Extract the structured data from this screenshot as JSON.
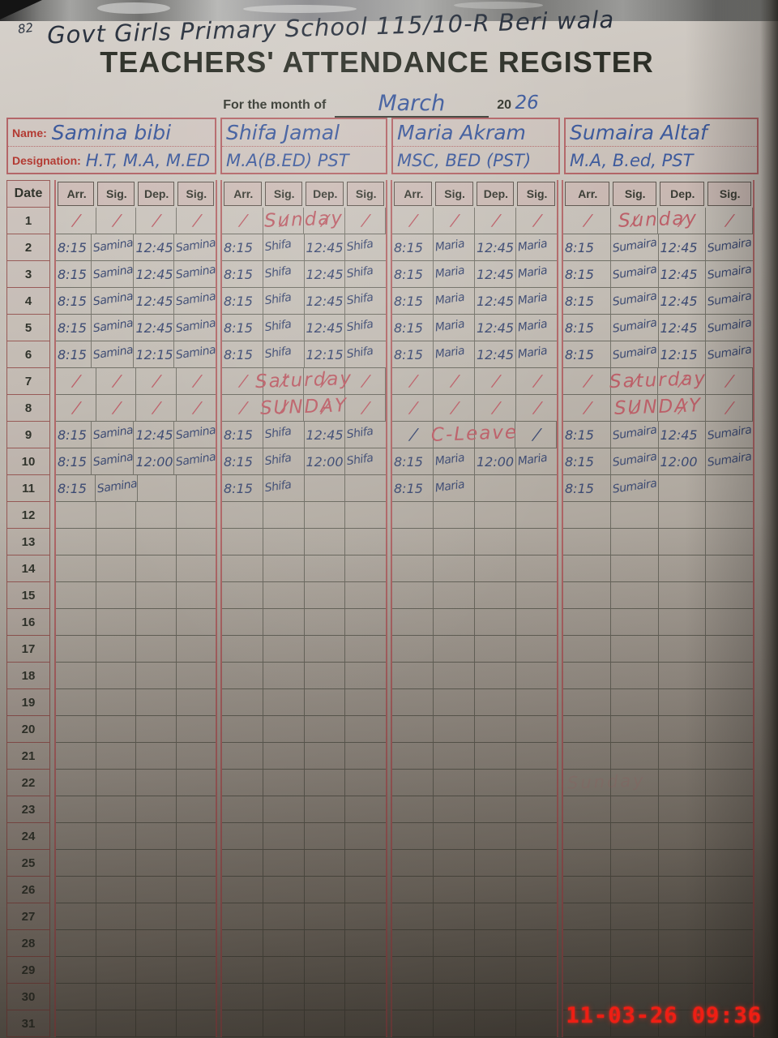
{
  "page_corner_number": "82",
  "school_line": "Govt Girls Primary School 115/10-R Beri wala",
  "title": "TEACHERS' ATTENDANCE REGISTER",
  "month_label": "For the month of",
  "month_value": "March",
  "year_prefix": "20",
  "year_value": "26",
  "name_label": "Name:",
  "designation_label": "Designation:",
  "teachers": [
    {
      "name": "Samina bibi",
      "designation": "H.T, M.A, M.ED"
    },
    {
      "name": "Shifa Jamal",
      "designation": "M.A(B.ED) PST"
    },
    {
      "name": "Maria Akram",
      "designation": "MSC, BED (PST)"
    },
    {
      "name": "Sumaira Altaf",
      "designation": "M.A, B.ed, PST"
    }
  ],
  "columns": {
    "date": "Date",
    "sub": [
      "Arr.",
      "Sig.",
      "Dep.",
      "Sig."
    ]
  },
  "rows": [
    {
      "date": "1",
      "ink": "pink",
      "cells": [
        "/",
        "/",
        "/",
        "/",
        "/",
        "/",
        "/",
        "/",
        "/",
        "/",
        "/",
        "/",
        "/",
        "/",
        "/",
        "/"
      ],
      "overlays": [
        {
          "g": 1,
          "text": "Sunday",
          "ink": "pink"
        },
        {
          "g": 3,
          "text": "Sunday",
          "ink": "pink"
        }
      ]
    },
    {
      "date": "2",
      "cells": [
        "8:15",
        "Samina",
        "12:45",
        "Samina",
        "8:15",
        "Shifa",
        "12:45",
        "Shifa",
        "8:15",
        "Maria",
        "12:45",
        "Maria",
        "8:15",
        "Sumaira",
        "12:45",
        "Sumaira"
      ]
    },
    {
      "date": "3",
      "cells": [
        "8:15",
        "Samina",
        "12:45",
        "Samina",
        "8:15",
        "Shifa",
        "12:45",
        "Shifa",
        "8:15",
        "Maria",
        "12:45",
        "Maria",
        "8:15",
        "Sumaira",
        "12:45",
        "Sumaira"
      ]
    },
    {
      "date": "4",
      "cells": [
        "8:15",
        "Samina",
        "12:45",
        "Samina",
        "8:15",
        "Shifa",
        "12:45",
        "Shifa",
        "8:15",
        "Maria",
        "12:45",
        "Maria",
        "8:15",
        "Sumaira",
        "12:45",
        "Sumaira"
      ]
    },
    {
      "date": "5",
      "cells": [
        "8:15",
        "Samina",
        "12:45",
        "Samina",
        "8:15",
        "Shifa",
        "12:45",
        "Shifa",
        "8:15",
        "Maria",
        "12:45",
        "Maria",
        "8:15",
        "Sumaira",
        "12:45",
        "Sumaira"
      ]
    },
    {
      "date": "6",
      "cells": [
        "8:15",
        "Samina",
        "12:15",
        "Samina",
        "8:15",
        "Shifa",
        "12:15",
        "Shifa",
        "8:15",
        "Maria",
        "12:45",
        "Maria",
        "8:15",
        "Sumaira",
        "12:15",
        "Sumaira"
      ]
    },
    {
      "date": "7",
      "ink": "pink",
      "cells": [
        "/",
        "/",
        "/",
        "/",
        "/",
        "/",
        "/",
        "/",
        "/",
        "/",
        "/",
        "/",
        "/",
        "/",
        "/",
        "/"
      ],
      "overlays": [
        {
          "g": 1,
          "text": "Saturday",
          "ink": "pink"
        },
        {
          "g": 3,
          "text": "Saturday",
          "ink": "pink"
        }
      ]
    },
    {
      "date": "8",
      "ink": "pink",
      "cells": [
        "/",
        "/",
        "/",
        "/",
        "/",
        "/",
        "/",
        "/",
        "/",
        "/",
        "/",
        "/",
        "/",
        "/",
        "/",
        "/"
      ],
      "overlays": [
        {
          "g": 1,
          "text": "SUNDAY",
          "ink": "pink"
        },
        {
          "g": 3,
          "text": "SUNDAY",
          "ink": "pink"
        }
      ]
    },
    {
      "date": "9",
      "cells": [
        "8:15",
        "Samina",
        "12:45",
        "Samina",
        "8:15",
        "Shifa",
        "12:45",
        "Shifa",
        "/",
        "",
        "",
        "/",
        "8:15",
        "Sumaira",
        "12:45",
        "Sumaira"
      ],
      "overlays": [
        {
          "g": 2,
          "text": "C-Leave",
          "ink": "pink"
        }
      ]
    },
    {
      "date": "10",
      "cells": [
        "8:15",
        "Samina",
        "12:00",
        "Samina",
        "8:15",
        "Shifa",
        "12:00",
        "Shifa",
        "8:15",
        "Maria",
        "12:00",
        "Maria",
        "8:15",
        "Sumaira",
        "12:00",
        "Sumaira"
      ]
    },
    {
      "date": "11",
      "cells": [
        "8:15",
        "Samina",
        "",
        "",
        "8:15",
        "Shifa",
        "",
        "",
        "8:15",
        "Maria",
        "",
        "",
        "8:15",
        "Sumaira",
        "",
        ""
      ]
    },
    {
      "date": "12",
      "cells": []
    },
    {
      "date": "13",
      "cells": []
    },
    {
      "date": "14",
      "cells": []
    },
    {
      "date": "15",
      "cells": []
    },
    {
      "date": "16",
      "cells": []
    },
    {
      "date": "17",
      "cells": []
    },
    {
      "date": "18",
      "cells": []
    },
    {
      "date": "19",
      "cells": []
    },
    {
      "date": "20",
      "cells": []
    },
    {
      "date": "21",
      "cells": []
    },
    {
      "date": "22",
      "cells": []
    },
    {
      "date": "23",
      "cells": []
    },
    {
      "date": "24",
      "cells": []
    },
    {
      "date": "25",
      "cells": []
    },
    {
      "date": "26",
      "cells": []
    },
    {
      "date": "27",
      "cells": []
    },
    {
      "date": "28",
      "cells": []
    },
    {
      "date": "29",
      "cells": []
    },
    {
      "date": "30",
      "cells": []
    },
    {
      "date": "31",
      "cells": []
    }
  ],
  "ghost_text": "Sunday",
  "timestamp": "11-03-26  09:36",
  "colors": {
    "border_red": "#ac4e52",
    "grid_dark": "#3a3c32",
    "ink_blue": "#3d5a9c",
    "ink_pink": "#bc5f68",
    "timestamp_red": "#ee1e14"
  }
}
